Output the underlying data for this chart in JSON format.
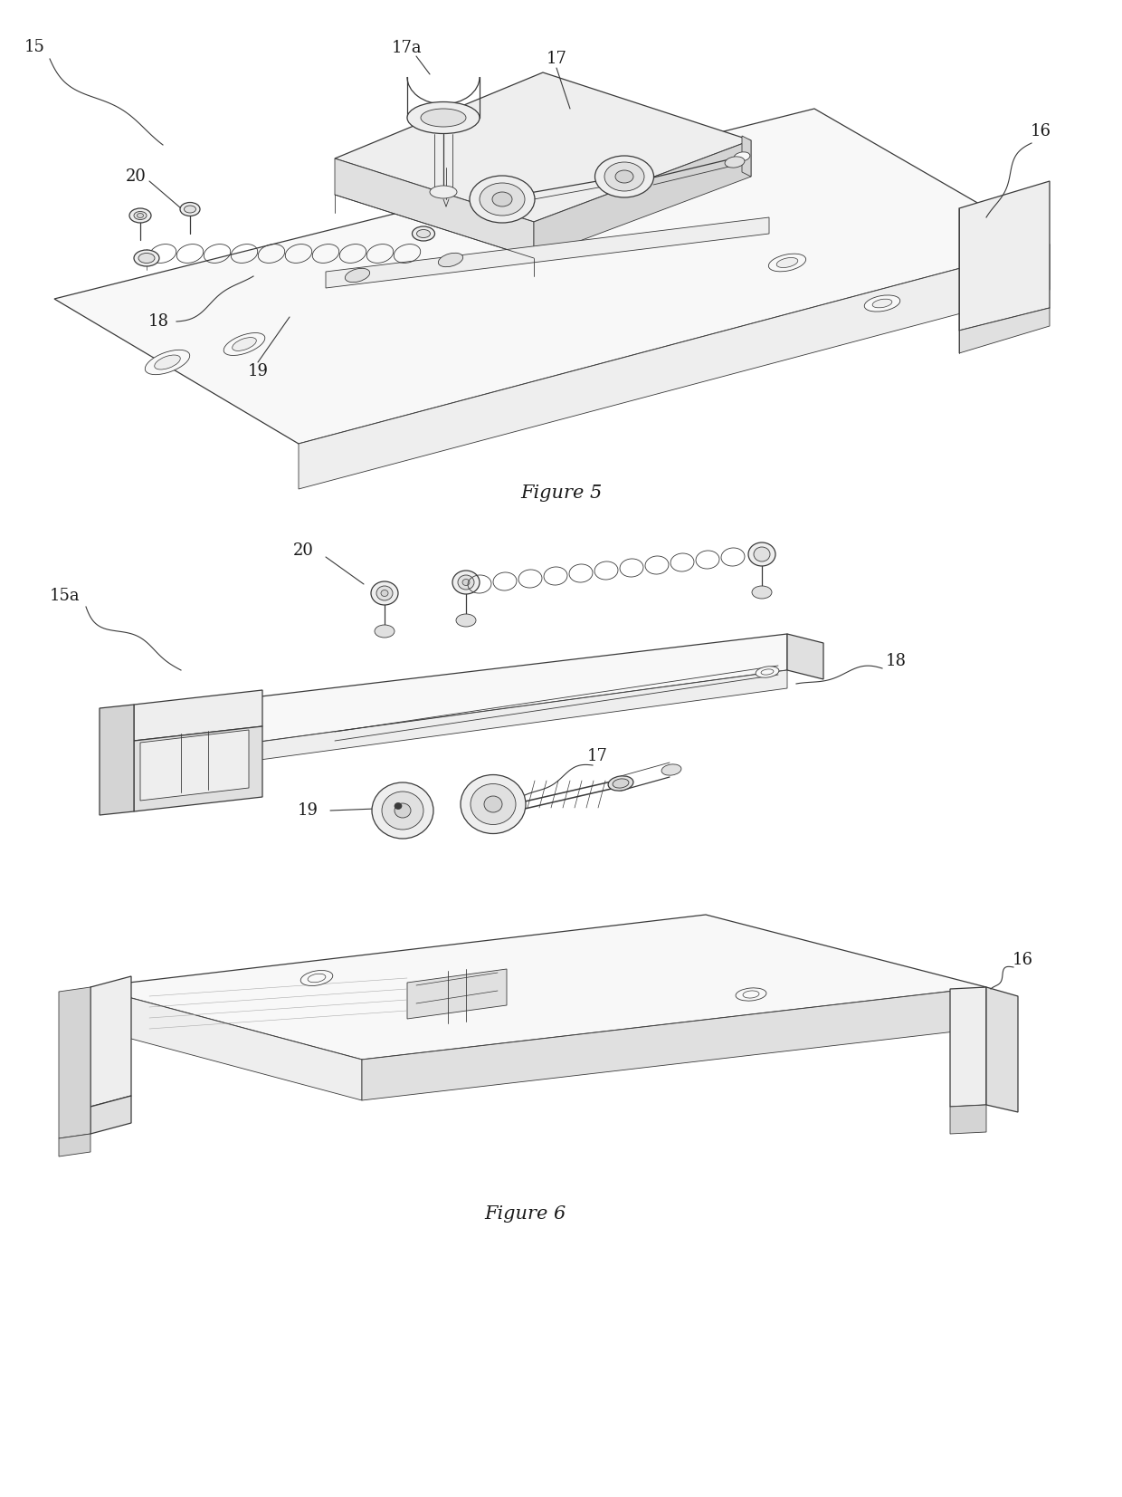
{
  "background_color": "#ffffff",
  "fig_width": 12.4,
  "fig_height": 16.53,
  "dpi": 100,
  "figure5_caption": "Figure 5",
  "figure6_caption": "Figure 6",
  "line_color": "#3a3a3a",
  "text_color": "#1a1a1a",
  "lw_main": 0.9,
  "lw_thin": 0.6,
  "lw_thick": 1.1,
  "fc_light": "#f8f8f8",
  "fc_mid": "#eeeeee",
  "fc_dark": "#e0e0e0",
  "fc_darker": "#d4d4d4"
}
